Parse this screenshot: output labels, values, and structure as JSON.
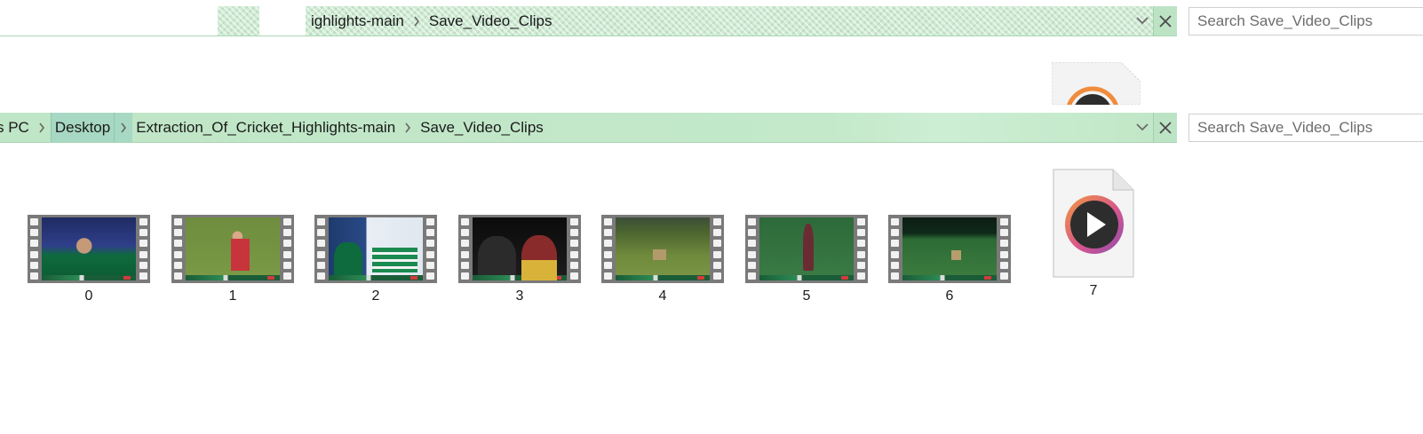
{
  "ghost_bar": {
    "crumbs": [
      "ighlights-main",
      "Save_Video_Clips"
    ],
    "search_placeholder": "Search Save_Video_Clips"
  },
  "address_bar": {
    "crumbs": [
      "s PC",
      "Desktop",
      "Extraction_Of_Cricket_Highlights-main",
      "Save_Video_Clips"
    ],
    "highlighted_crumb": "Desktop",
    "search_placeholder": "Search Save_Video_Clips"
  },
  "files": [
    {
      "name": "0",
      "type": "video"
    },
    {
      "name": "1",
      "type": "video"
    },
    {
      "name": "2",
      "type": "video"
    },
    {
      "name": "3",
      "type": "video"
    },
    {
      "name": "4",
      "type": "video"
    },
    {
      "name": "5",
      "type": "video"
    },
    {
      "name": "6",
      "type": "video"
    },
    {
      "name": "7",
      "type": "media-file"
    }
  ],
  "colors": {
    "address_bar_bg": "#bfe6c6",
    "highlight_crumb_bg": "#a7d8c4",
    "play_ring_outer": "#f08c3c",
    "play_ring_inner": "#a64ea0",
    "play_disc": "#2d2d2d"
  },
  "icons": {
    "separator": "chevron-right-icon",
    "dropdown": "chevron-down-icon",
    "close": "close-icon",
    "video_thumbnail": "filmstrip-icon",
    "media_file": "media-player-file-icon"
  }
}
